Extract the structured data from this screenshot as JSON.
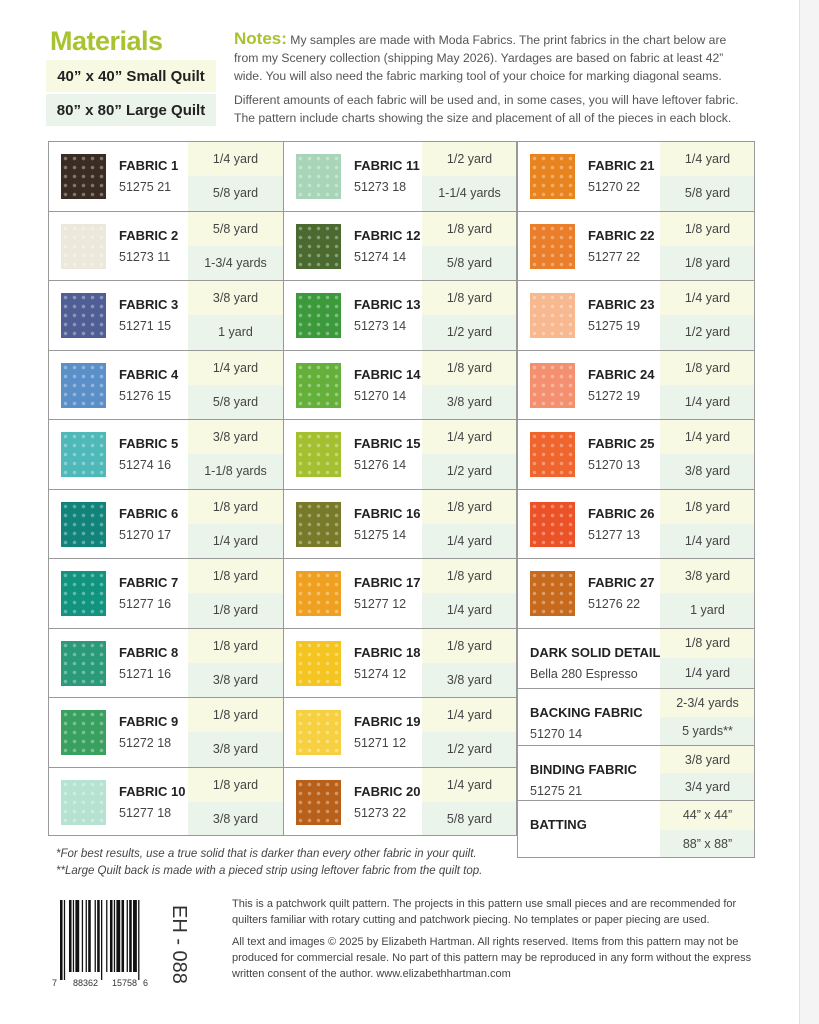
{
  "title": "Materials",
  "sizes": [
    "40” x 40” Small Quilt",
    "80” x 80” Large Quilt"
  ],
  "notes": {
    "label": "Notes:",
    "p1": "My samples are made with Moda Fabrics. The print fabrics in the chart below are from my Scenery collection (shipping May 2026). Yardages are based on fabric at least 42” wide. You will also need the fabric marking tool of your choice for marking diagonal seams.",
    "p2": "Different amounts of each fabric will be used and, in some cases, you will have leftover fabric. The pattern include charts showing the size and placement of all of the pieces in each block."
  },
  "fabrics": [
    {
      "name": "FABRIC 1",
      "code": "51275 21",
      "small": "1/4 yard",
      "large": "5/8 yard",
      "color": "#3a2c22"
    },
    {
      "name": "FABRIC 2",
      "code": "51273 11",
      "small": "5/8 yard",
      "large": "1-3/4 yards",
      "color": "#ece8dc"
    },
    {
      "name": "FABRIC 3",
      "code": "51271 15",
      "small": "3/8 yard",
      "large": "1 yard",
      "color": "#4f5f95"
    },
    {
      "name": "FABRIC 4",
      "code": "51276 15",
      "small": "1/4 yard",
      "large": "5/8 yard",
      "color": "#5b8fc8"
    },
    {
      "name": "FABRIC 5",
      "code": "51274 16",
      "small": "3/8 yard",
      "large": "1-1/8 yards",
      "color": "#4fb8b8"
    },
    {
      "name": "FABRIC 6",
      "code": "51270 17",
      "small": "1/8 yard",
      "large": "1/4 yard",
      "color": "#12837a"
    },
    {
      "name": "FABRIC 7",
      "code": "51277 16",
      "small": "1/8 yard",
      "large": "1/8 yard",
      "color": "#109480"
    },
    {
      "name": "FABRIC 8",
      "code": "51271 16",
      "small": "1/8 yard",
      "large": "3/8 yard",
      "color": "#2a9a78"
    },
    {
      "name": "FABRIC 9",
      "code": "51272 18",
      "small": "1/8 yard",
      "large": "3/8 yard",
      "color": "#3aa060"
    },
    {
      "name": "FABRIC 10",
      "code": "51277 18",
      "small": "1/8 yard",
      "large": "3/8 yard",
      "color": "#b6e2d2"
    },
    {
      "name": "FABRIC 11",
      "code": "51273 18",
      "small": "1/2 yard",
      "large": "1-1/4 yards",
      "color": "#a8d4b8"
    },
    {
      "name": "FABRIC 12",
      "code": "51274 14",
      "small": "1/8 yard",
      "large": "5/8 yard",
      "color": "#4a6a30"
    },
    {
      "name": "FABRIC 13",
      "code": "51273 14",
      "small": "1/8 yard",
      "large": "1/2 yard",
      "color": "#3c9a3c"
    },
    {
      "name": "FABRIC 14",
      "code": "51270 14",
      "small": "1/8 yard",
      "large": "3/8 yard",
      "color": "#64b03a"
    },
    {
      "name": "FABRIC 15",
      "code": "51276 14",
      "small": "1/4 yard",
      "large": "1/2 yard",
      "color": "#a4c030"
    },
    {
      "name": "FABRIC 16",
      "code": "51275 14",
      "small": "1/8 yard",
      "large": "1/4 yard",
      "color": "#787a2a"
    },
    {
      "name": "FABRIC 17",
      "code": "51277 12",
      "small": "1/8 yard",
      "large": "1/4 yard",
      "color": "#f0a020"
    },
    {
      "name": "FABRIC 18",
      "code": "51274 12",
      "small": "1/8 yard",
      "large": "3/8 yard",
      "color": "#f4c420"
    },
    {
      "name": "FABRIC 19",
      "code": "51271 12",
      "small": "1/4 yard",
      "large": "1/2 yard",
      "color": "#f6d040"
    },
    {
      "name": "FABRIC 20",
      "code": "51273 22",
      "small": "1/4 yard",
      "large": "5/8 yard",
      "color": "#b8601a"
    },
    {
      "name": "FABRIC 21",
      "code": "51270 22",
      "small": "1/4 yard",
      "large": "5/8 yard",
      "color": "#e88420"
    },
    {
      "name": "FABRIC 22",
      "code": "51277 22",
      "small": "1/8 yard",
      "large": "1/8 yard",
      "color": "#ea7e2a"
    },
    {
      "name": "FABRIC 23",
      "code": "51275 19",
      "small": "1/4 yard",
      "large": "1/2 yard",
      "color": "#f8b890"
    },
    {
      "name": "FABRIC 24",
      "code": "51272 19",
      "small": "1/8 yard",
      "large": "1/4 yard",
      "color": "#f49070"
    },
    {
      "name": "FABRIC 25",
      "code": "51270 13",
      "small": "1/4 yard",
      "large": "3/8 yard",
      "color": "#f0642e"
    },
    {
      "name": "FABRIC 26",
      "code": "51277 13",
      "small": "1/8 yard",
      "large": "1/4 yard",
      "color": "#ec5228"
    },
    {
      "name": "FABRIC 27",
      "code": "51276 22",
      "small": "3/8 yard",
      "large": "1 yard",
      "color": "#c86a1e"
    }
  ],
  "extras": [
    {
      "name": "DARK SOLID DETAIL*",
      "code": "Bella 280 Espresso",
      "small": "1/8 yard",
      "large": "1/4 yard"
    },
    {
      "name": "BACKING FABRIC",
      "code": "51270 14",
      "small": "2-3/4 yards",
      "large": "5 yards**"
    },
    {
      "name": "BINDING FABRIC",
      "code": "51275 21",
      "small": "3/8 yard",
      "large": "3/4 yard"
    },
    {
      "name": "BATTING",
      "code": "",
      "small": "44” x 44”",
      "large": "88” x 88”"
    }
  ],
  "footnotes": [
    "*For best results, use a true solid that is darker than every other fabric in your quilt.",
    "**Large Quilt back is made with a pieced strip using leftover fabric from the quilt top."
  ],
  "barcode": {
    "digits": [
      "7",
      "88362",
      "15758",
      "6"
    ],
    "sku": "EH - 088"
  },
  "info": [
    "This is a patchwork quilt pattern. The projects in this pattern use small pieces and are recommended for quilters familiar with rotary cutting and patchwork piecing. No templates or paper piecing are used.",
    "All text and images © 2025 by Elizabeth Hartman. All rights reserved. Items from this pattern may not be produced for commercial resale. No part of this pattern may be reproduced in any form without the express written consent of the author. www.elizabethhartman.com"
  ]
}
